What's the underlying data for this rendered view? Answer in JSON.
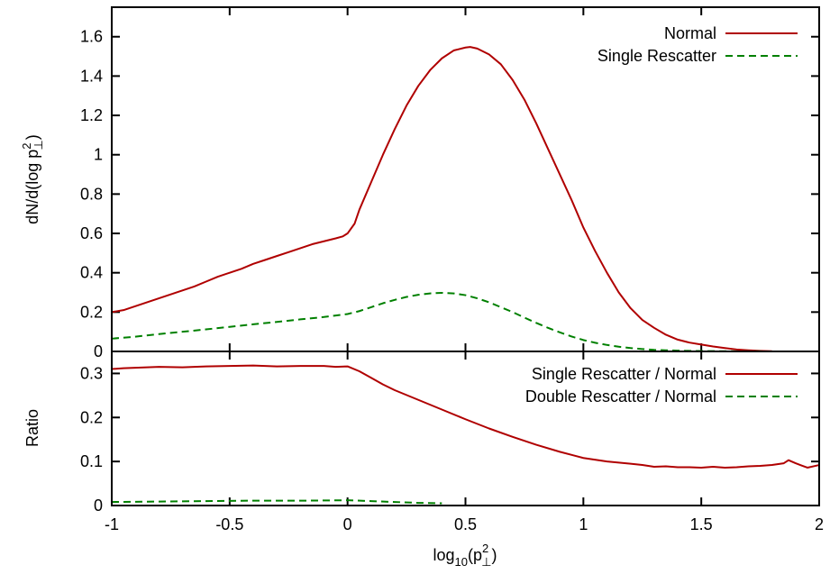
{
  "chart_data": [
    {
      "type": "line",
      "title": "",
      "xlim": [
        -1,
        2
      ],
      "ylim": [
        0,
        1.75
      ],
      "ylabel_parts": {
        "main": "dN/d(log p",
        "sup": "2",
        "sub": "⊥",
        "close": ")"
      },
      "xticks": [
        "-1",
        "-0.5",
        "0",
        "0.5",
        "1",
        "1.5",
        "2"
      ],
      "xtick_values": [
        -1,
        -0.5,
        0,
        0.5,
        1,
        1.5,
        2
      ],
      "yticks": [
        "0",
        "0.2",
        "0.4",
        "0.6",
        "0.8",
        "1",
        "1.2",
        "1.4",
        "1.6"
      ],
      "ytick_values": [
        0,
        0.2,
        0.4,
        0.6,
        0.8,
        1.0,
        1.2,
        1.4,
        1.6
      ],
      "legend_position": "top-right",
      "series": [
        {
          "name": "Normal",
          "color": "#b00000",
          "dash": "solid",
          "x": [
            -1.0,
            -0.95,
            -0.9,
            -0.85,
            -0.8,
            -0.75,
            -0.7,
            -0.65,
            -0.6,
            -0.55,
            -0.5,
            -0.45,
            -0.4,
            -0.35,
            -0.3,
            -0.25,
            -0.2,
            -0.15,
            -0.1,
            -0.05,
            -0.02,
            0.0,
            0.03,
            0.05,
            0.1,
            0.15,
            0.2,
            0.25,
            0.3,
            0.35,
            0.4,
            0.45,
            0.5,
            0.52,
            0.55,
            0.6,
            0.65,
            0.7,
            0.75,
            0.8,
            0.85,
            0.9,
            0.95,
            1.0,
            1.05,
            1.1,
            1.15,
            1.2,
            1.25,
            1.3,
            1.35,
            1.4,
            1.45,
            1.5,
            1.55,
            1.6,
            1.65,
            1.7,
            1.75,
            1.8
          ],
          "y": [
            0.2,
            0.21,
            0.23,
            0.25,
            0.27,
            0.29,
            0.31,
            0.33,
            0.355,
            0.38,
            0.4,
            0.42,
            0.445,
            0.465,
            0.485,
            0.505,
            0.525,
            0.545,
            0.56,
            0.575,
            0.585,
            0.6,
            0.65,
            0.72,
            0.86,
            1.0,
            1.13,
            1.25,
            1.35,
            1.43,
            1.49,
            1.53,
            1.545,
            1.548,
            1.54,
            1.51,
            1.46,
            1.38,
            1.28,
            1.16,
            1.03,
            0.9,
            0.77,
            0.63,
            0.51,
            0.4,
            0.3,
            0.22,
            0.16,
            0.12,
            0.085,
            0.06,
            0.045,
            0.035,
            0.025,
            0.017,
            0.01,
            0.006,
            0.003,
            0.001
          ]
        },
        {
          "name": "Single Rescatter",
          "color": "#008000",
          "dash": "dashed",
          "x": [
            -1.0,
            -0.9,
            -0.8,
            -0.7,
            -0.6,
            -0.5,
            -0.4,
            -0.3,
            -0.2,
            -0.1,
            0.0,
            0.05,
            0.1,
            0.15,
            0.2,
            0.25,
            0.3,
            0.35,
            0.4,
            0.45,
            0.5,
            0.55,
            0.6,
            0.65,
            0.7,
            0.75,
            0.8,
            0.85,
            0.9,
            0.95,
            1.0,
            1.05,
            1.1,
            1.15,
            1.2,
            1.25,
            1.3,
            1.35,
            1.4,
            1.45,
            1.5,
            1.55,
            1.6,
            1.65,
            1.7,
            1.75,
            1.8
          ],
          "y": [
            0.065,
            0.075,
            0.088,
            0.1,
            0.112,
            0.125,
            0.138,
            0.15,
            0.163,
            0.175,
            0.19,
            0.205,
            0.225,
            0.245,
            0.262,
            0.277,
            0.288,
            0.295,
            0.298,
            0.295,
            0.286,
            0.27,
            0.25,
            0.225,
            0.2,
            0.172,
            0.145,
            0.12,
            0.097,
            0.076,
            0.058,
            0.044,
            0.033,
            0.024,
            0.017,
            0.012,
            0.008,
            0.006,
            0.004,
            0.003,
            0.002,
            0.0015,
            0.001,
            0.0008,
            0.0005,
            0.0003,
            0.0001
          ]
        }
      ]
    },
    {
      "type": "line",
      "title": "",
      "xlim": [
        -1,
        2
      ],
      "ylim": [
        0,
        0.35
      ],
      "ylabel": "Ratio",
      "xlabel_parts": {
        "main": "log",
        "sub1": "10",
        "open": "(p",
        "sup": "2",
        "sub2": "⊥",
        "close": ")"
      },
      "xticks": [
        "-1",
        "-0.5",
        "0",
        "0.5",
        "1",
        "1.5",
        "2"
      ],
      "xtick_values": [
        -1,
        -0.5,
        0,
        0.5,
        1,
        1.5,
        2
      ],
      "yticks": [
        "0",
        "0.1",
        "0.2",
        "0.3"
      ],
      "ytick_values": [
        0,
        0.1,
        0.2,
        0.3
      ],
      "legend_position": "top-right",
      "series": [
        {
          "name": "Single Rescatter / Normal",
          "color": "#b00000",
          "dash": "solid",
          "x": [
            -1.0,
            -0.95,
            -0.9,
            -0.8,
            -0.7,
            -0.6,
            -0.5,
            -0.4,
            -0.3,
            -0.2,
            -0.1,
            -0.05,
            0.0,
            0.05,
            0.1,
            0.15,
            0.2,
            0.3,
            0.4,
            0.5,
            0.6,
            0.7,
            0.8,
            0.9,
            1.0,
            1.1,
            1.2,
            1.25,
            1.3,
            1.35,
            1.4,
            1.45,
            1.5,
            1.55,
            1.6,
            1.65,
            1.7,
            1.75,
            1.8,
            1.85,
            1.87,
            1.9,
            1.95,
            2.0
          ],
          "y": [
            0.31,
            0.312,
            0.313,
            0.315,
            0.314,
            0.316,
            0.317,
            0.318,
            0.316,
            0.317,
            0.317,
            0.315,
            0.316,
            0.305,
            0.29,
            0.275,
            0.262,
            0.24,
            0.218,
            0.196,
            0.175,
            0.156,
            0.138,
            0.122,
            0.108,
            0.1,
            0.095,
            0.092,
            0.088,
            0.089,
            0.087,
            0.087,
            0.086,
            0.088,
            0.086,
            0.087,
            0.089,
            0.09,
            0.092,
            0.096,
            0.103,
            0.096,
            0.086,
            0.092
          ]
        },
        {
          "name": "Double Rescatter / Normal",
          "color": "#008000",
          "dash": "dashed",
          "x": [
            -1.0,
            -0.8,
            -0.6,
            -0.4,
            -0.2,
            0.0,
            0.1,
            0.2,
            0.3,
            0.4
          ],
          "y": [
            0.008,
            0.009,
            0.01,
            0.011,
            0.011,
            0.012,
            0.01,
            0.008,
            0.006,
            0.005
          ]
        }
      ]
    }
  ]
}
